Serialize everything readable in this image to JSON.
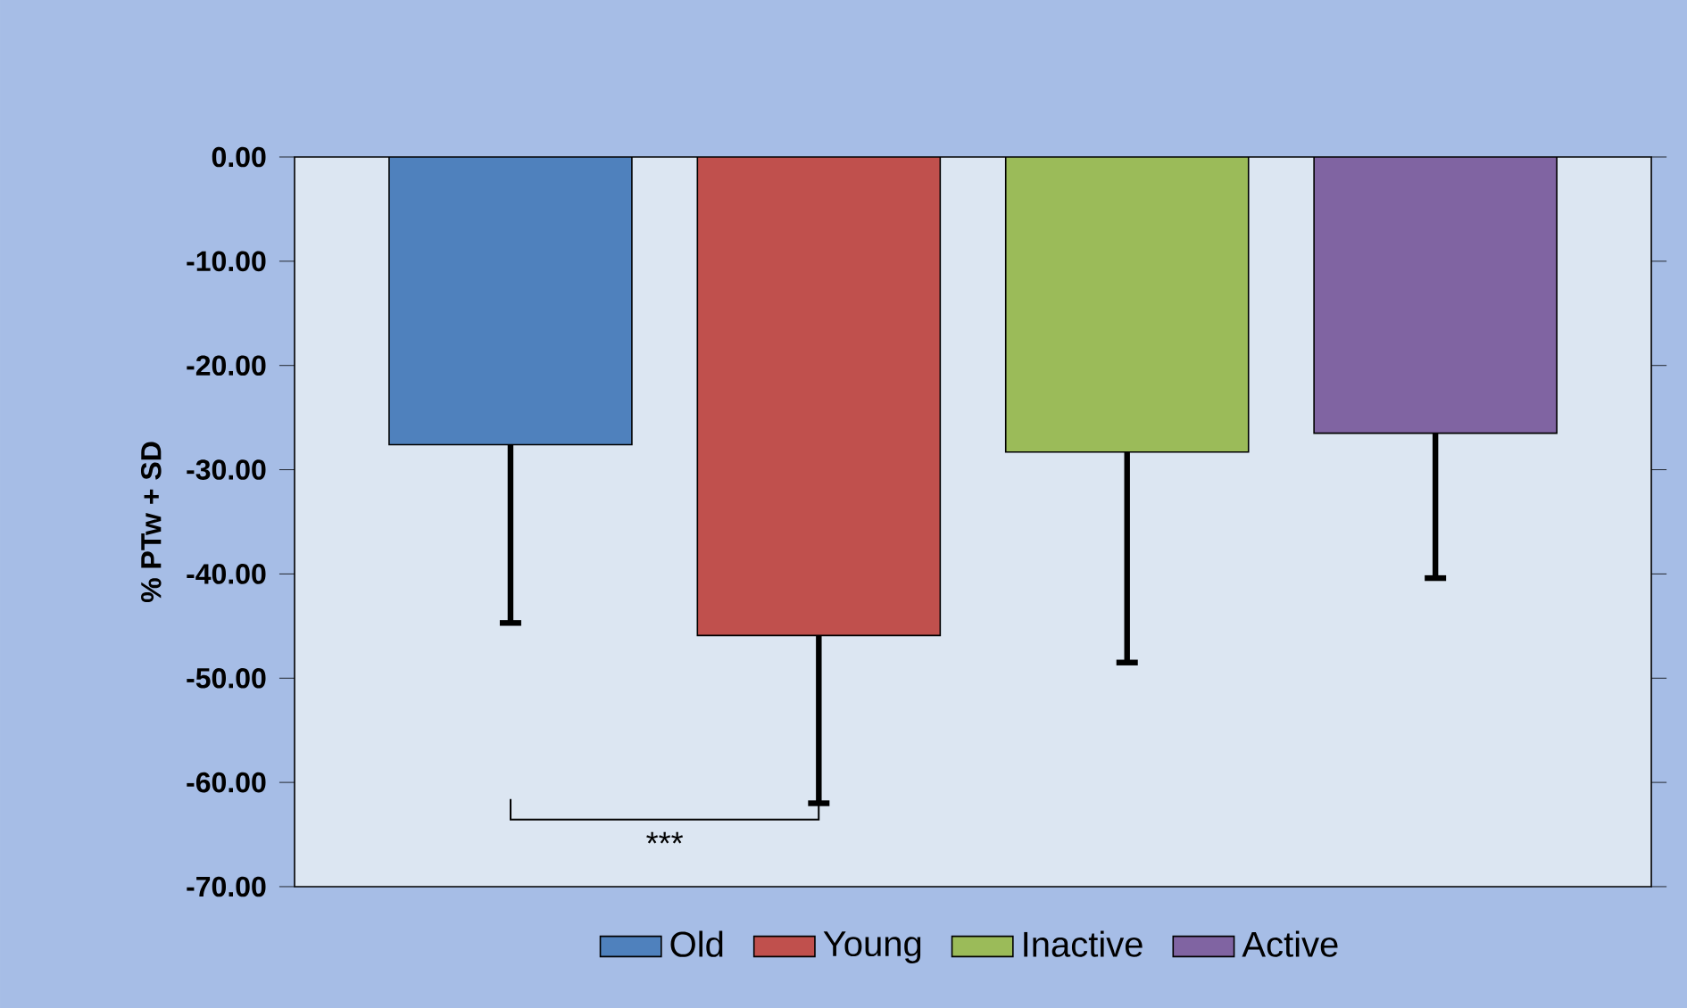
{
  "chart_data": {
    "type": "bar",
    "ylabel": "% PTw + SD",
    "categories": [
      null
    ],
    "series": [
      {
        "name": "Old",
        "color": "#4f81bd",
        "values": [
          -27.6
        ],
        "errors": [
          [
            -44.7,
            -27.6
          ]
        ]
      },
      {
        "name": "Young",
        "color": "#c0504d",
        "values": [
          -45.9
        ],
        "errors": [
          [
            -62.0,
            -45.9
          ]
        ]
      },
      {
        "name": "Inactive",
        "color": "#9bbb59",
        "values": [
          -28.3
        ],
        "errors": [
          [
            -48.5,
            -28.3
          ]
        ]
      },
      {
        "name": "Active",
        "color": "#8064a2",
        "values": [
          -26.5
        ],
        "errors": [
          [
            -40.4,
            -26.5
          ]
        ]
      }
    ],
    "ylim": [
      -70,
      0
    ],
    "yticks": [
      {
        "value": -70,
        "label": "-70.00"
      },
      {
        "value": -60,
        "label": "-60.00"
      },
      {
        "value": -50,
        "label": "-50.00"
      },
      {
        "value": -40,
        "label": "-40.00"
      },
      {
        "value": -30,
        "label": "-30.00"
      },
      {
        "value": -20,
        "label": "-20.00"
      },
      {
        "value": -10,
        "label": "-10.00"
      },
      {
        "value": 0,
        "label": "0.00"
      }
    ],
    "grid": false,
    "legend": "bottom",
    "annotations": [
      "***"
    ]
  }
}
